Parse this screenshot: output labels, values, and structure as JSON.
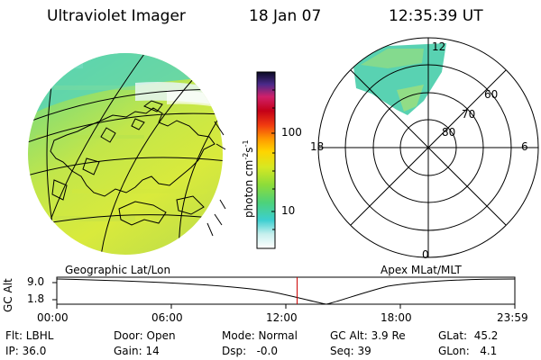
{
  "header": {
    "instrument": "Ultraviolet Imager",
    "date": "18 Jan 07",
    "time": "12:35:39 UT"
  },
  "panels": {
    "left_label": "Geographic Lat/Lon",
    "right_label": "Apex MLat/MLT"
  },
  "colorbar": {
    "unit_label": "photon cm",
    "unit_exp1": "-2",
    "unit_mid": "s",
    "unit_exp2": "-1",
    "tick_100": "100",
    "tick_10": "10"
  },
  "polar": {
    "mlt_top": "12",
    "mlt_left": "18",
    "mlt_right": "6",
    "mlt_bottom": "0",
    "lat_60": "60",
    "lat_70": "70",
    "lat_80": "80"
  },
  "altitude_plot": {
    "ylabel": "GC Alt",
    "ytick_top": "9.0",
    "ytick_bottom": "1.8",
    "xticks": [
      "00:00",
      "06:00",
      "12:00",
      "18:00",
      "23:59"
    ],
    "marker_time": "12:35"
  },
  "info": {
    "filter": "Flt: LBHL",
    "ip": "IP: 36.0",
    "door": "Door: Open",
    "gain": "Gain: 14",
    "mode": "Mode: Normal",
    "dsp": "Dsp:   -0.0",
    "gc_alt": "GC Alt: 3.9 Re",
    "seq": "Seq: 39",
    "glat": "GLat:  45.2",
    "glon": "GLon:   4.1"
  },
  "colors": {
    "marker": "#cc0000"
  }
}
